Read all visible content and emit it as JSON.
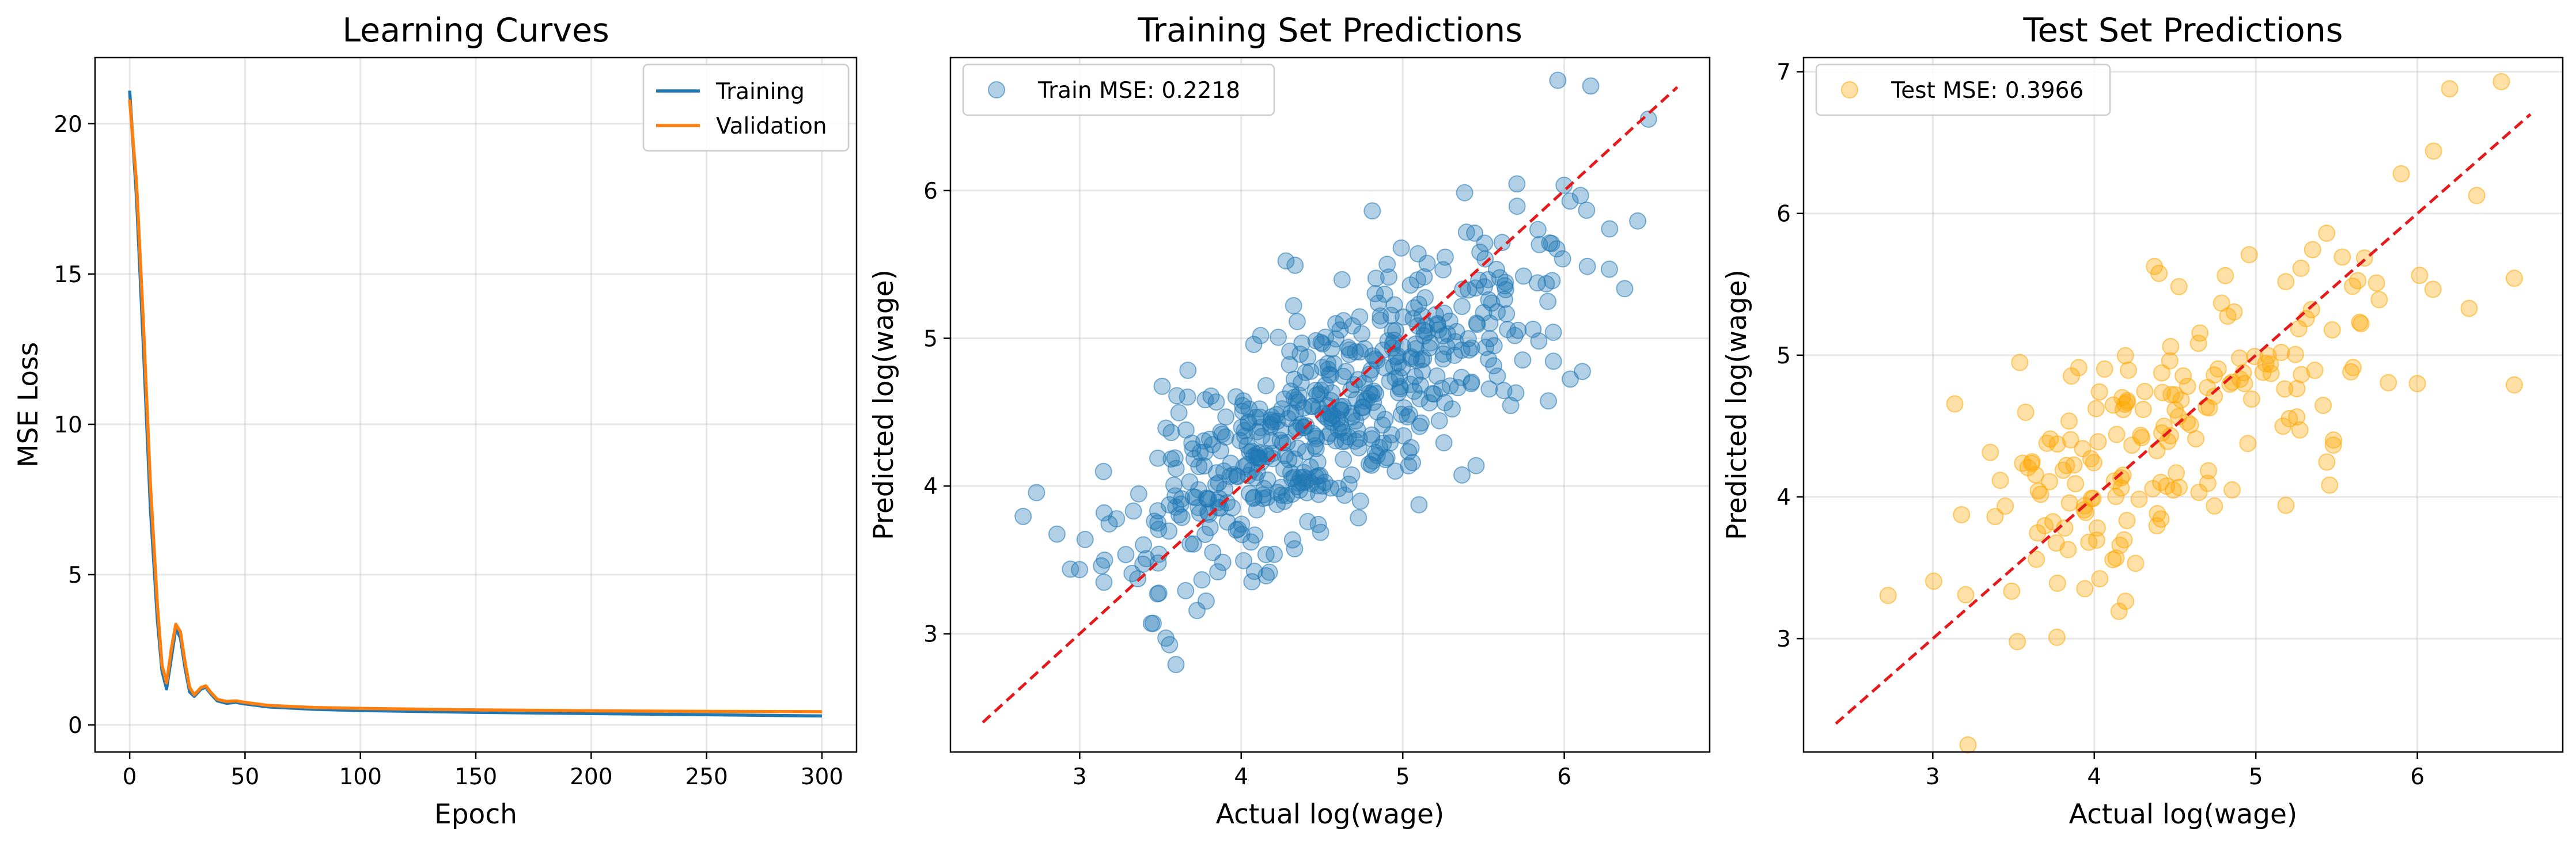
{
  "chart_data": [
    {
      "type": "line",
      "title": "Learning Curves",
      "xlabel": "Epoch",
      "ylabel": "MSE Loss",
      "xlim": [
        -15,
        315
      ],
      "ylim": [
        -0.9,
        22.2
      ],
      "xticks": [
        0,
        50,
        100,
        150,
        200,
        250,
        300
      ],
      "yticks": [
        0,
        5,
        10,
        15,
        20
      ],
      "grid": true,
      "legend_position": "top-right",
      "series": [
        {
          "name": "Training",
          "color": "#1f77b4",
          "points": [
            [
              0,
              21.1
            ],
            [
              3,
              17.5
            ],
            [
              6,
              12.5
            ],
            [
              9,
              7.2
            ],
            [
              12,
              3.5
            ],
            [
              14,
              1.8
            ],
            [
              16,
              1.2
            ],
            [
              18,
              2.2
            ],
            [
              20,
              3.2
            ],
            [
              22,
              2.9
            ],
            [
              24,
              1.9
            ],
            [
              26,
              1.1
            ],
            [
              28,
              0.95
            ],
            [
              31,
              1.2
            ],
            [
              33,
              1.25
            ],
            [
              35,
              1.05
            ],
            [
              38,
              0.8
            ],
            [
              42,
              0.72
            ],
            [
              46,
              0.75
            ],
            [
              50,
              0.7
            ],
            [
              60,
              0.6
            ],
            [
              80,
              0.52
            ],
            [
              100,
              0.48
            ],
            [
              150,
              0.42
            ],
            [
              200,
              0.38
            ],
            [
              250,
              0.34
            ],
            [
              300,
              0.3
            ]
          ]
        },
        {
          "name": "Validation",
          "color": "#ff7f0e",
          "points": [
            [
              0,
              20.8
            ],
            [
              3,
              18.0
            ],
            [
              6,
              13.3
            ],
            [
              9,
              8.0
            ],
            [
              12,
              4.0
            ],
            [
              14,
              2.0
            ],
            [
              16,
              1.4
            ],
            [
              18,
              2.5
            ],
            [
              20,
              3.35
            ],
            [
              22,
              3.1
            ],
            [
              24,
              2.1
            ],
            [
              26,
              1.25
            ],
            [
              28,
              1.0
            ],
            [
              31,
              1.25
            ],
            [
              33,
              1.3
            ],
            [
              35,
              1.1
            ],
            [
              38,
              0.85
            ],
            [
              42,
              0.78
            ],
            [
              46,
              0.8
            ],
            [
              50,
              0.75
            ],
            [
              60,
              0.65
            ],
            [
              80,
              0.58
            ],
            [
              100,
              0.55
            ],
            [
              150,
              0.5
            ],
            [
              200,
              0.47
            ],
            [
              250,
              0.45
            ],
            [
              300,
              0.44
            ]
          ]
        }
      ]
    },
    {
      "type": "scatter",
      "title": "Training Set Predictions",
      "xlabel": "Actual log(wage)",
      "ylabel": "Predicted log(wage)",
      "xlim": [
        2.2,
        6.9
      ],
      "ylim": [
        2.2,
        6.9
      ],
      "xticks": [
        3,
        4,
        5,
        6
      ],
      "yticks": [
        3,
        4,
        5,
        6
      ],
      "grid": true,
      "legend_position": "top-left",
      "legend_label": "Train MSE: 0.2218",
      "point_color": "#1f77b4",
      "point_alpha": 0.35,
      "reference_line": {
        "from": [
          2.4,
          2.4
        ],
        "to": [
          6.7,
          6.7
        ],
        "color": "#e41a1c",
        "style": "dashed"
      },
      "generator": {
        "n": 560,
        "seed": 11,
        "x_mean": 4.55,
        "x_sd": 0.68,
        "x_min": 2.65,
        "x_max": 6.7,
        "slope": 0.66,
        "intercept": 1.5,
        "noise_sd": 0.38
      }
    },
    {
      "type": "scatter",
      "title": "Test Set Predictions",
      "xlabel": "Actual log(wage)",
      "ylabel": "Predicted log(wage)",
      "xlim": [
        2.2,
        6.9
      ],
      "ylim": [
        2.2,
        7.1
      ],
      "xticks": [
        3,
        4,
        5,
        6
      ],
      "yticks": [
        3,
        4,
        5,
        6,
        7
      ],
      "grid": true,
      "legend_position": "top-left",
      "legend_label": "Test MSE: 0.3966",
      "point_color": "#ffa500",
      "point_alpha": 0.35,
      "reference_line": {
        "from": [
          2.4,
          2.4
        ],
        "to": [
          6.7,
          6.7
        ],
        "color": "#e41a1c",
        "style": "dashed"
      },
      "generator": {
        "n": 190,
        "seed": 29,
        "x_mean": 4.5,
        "x_sd": 0.72,
        "x_min": 2.4,
        "x_max": 6.6,
        "slope": 0.62,
        "intercept": 1.75,
        "noise_sd": 0.45
      },
      "extra_points": [
        [
          6.2,
          6.88
        ],
        [
          6.52,
          6.93
        ],
        [
          6.1,
          6.44
        ],
        [
          5.9,
          6.28
        ],
        [
          6.6,
          4.79
        ],
        [
          6.32,
          5.33
        ],
        [
          6.0,
          4.8
        ]
      ]
    }
  ]
}
